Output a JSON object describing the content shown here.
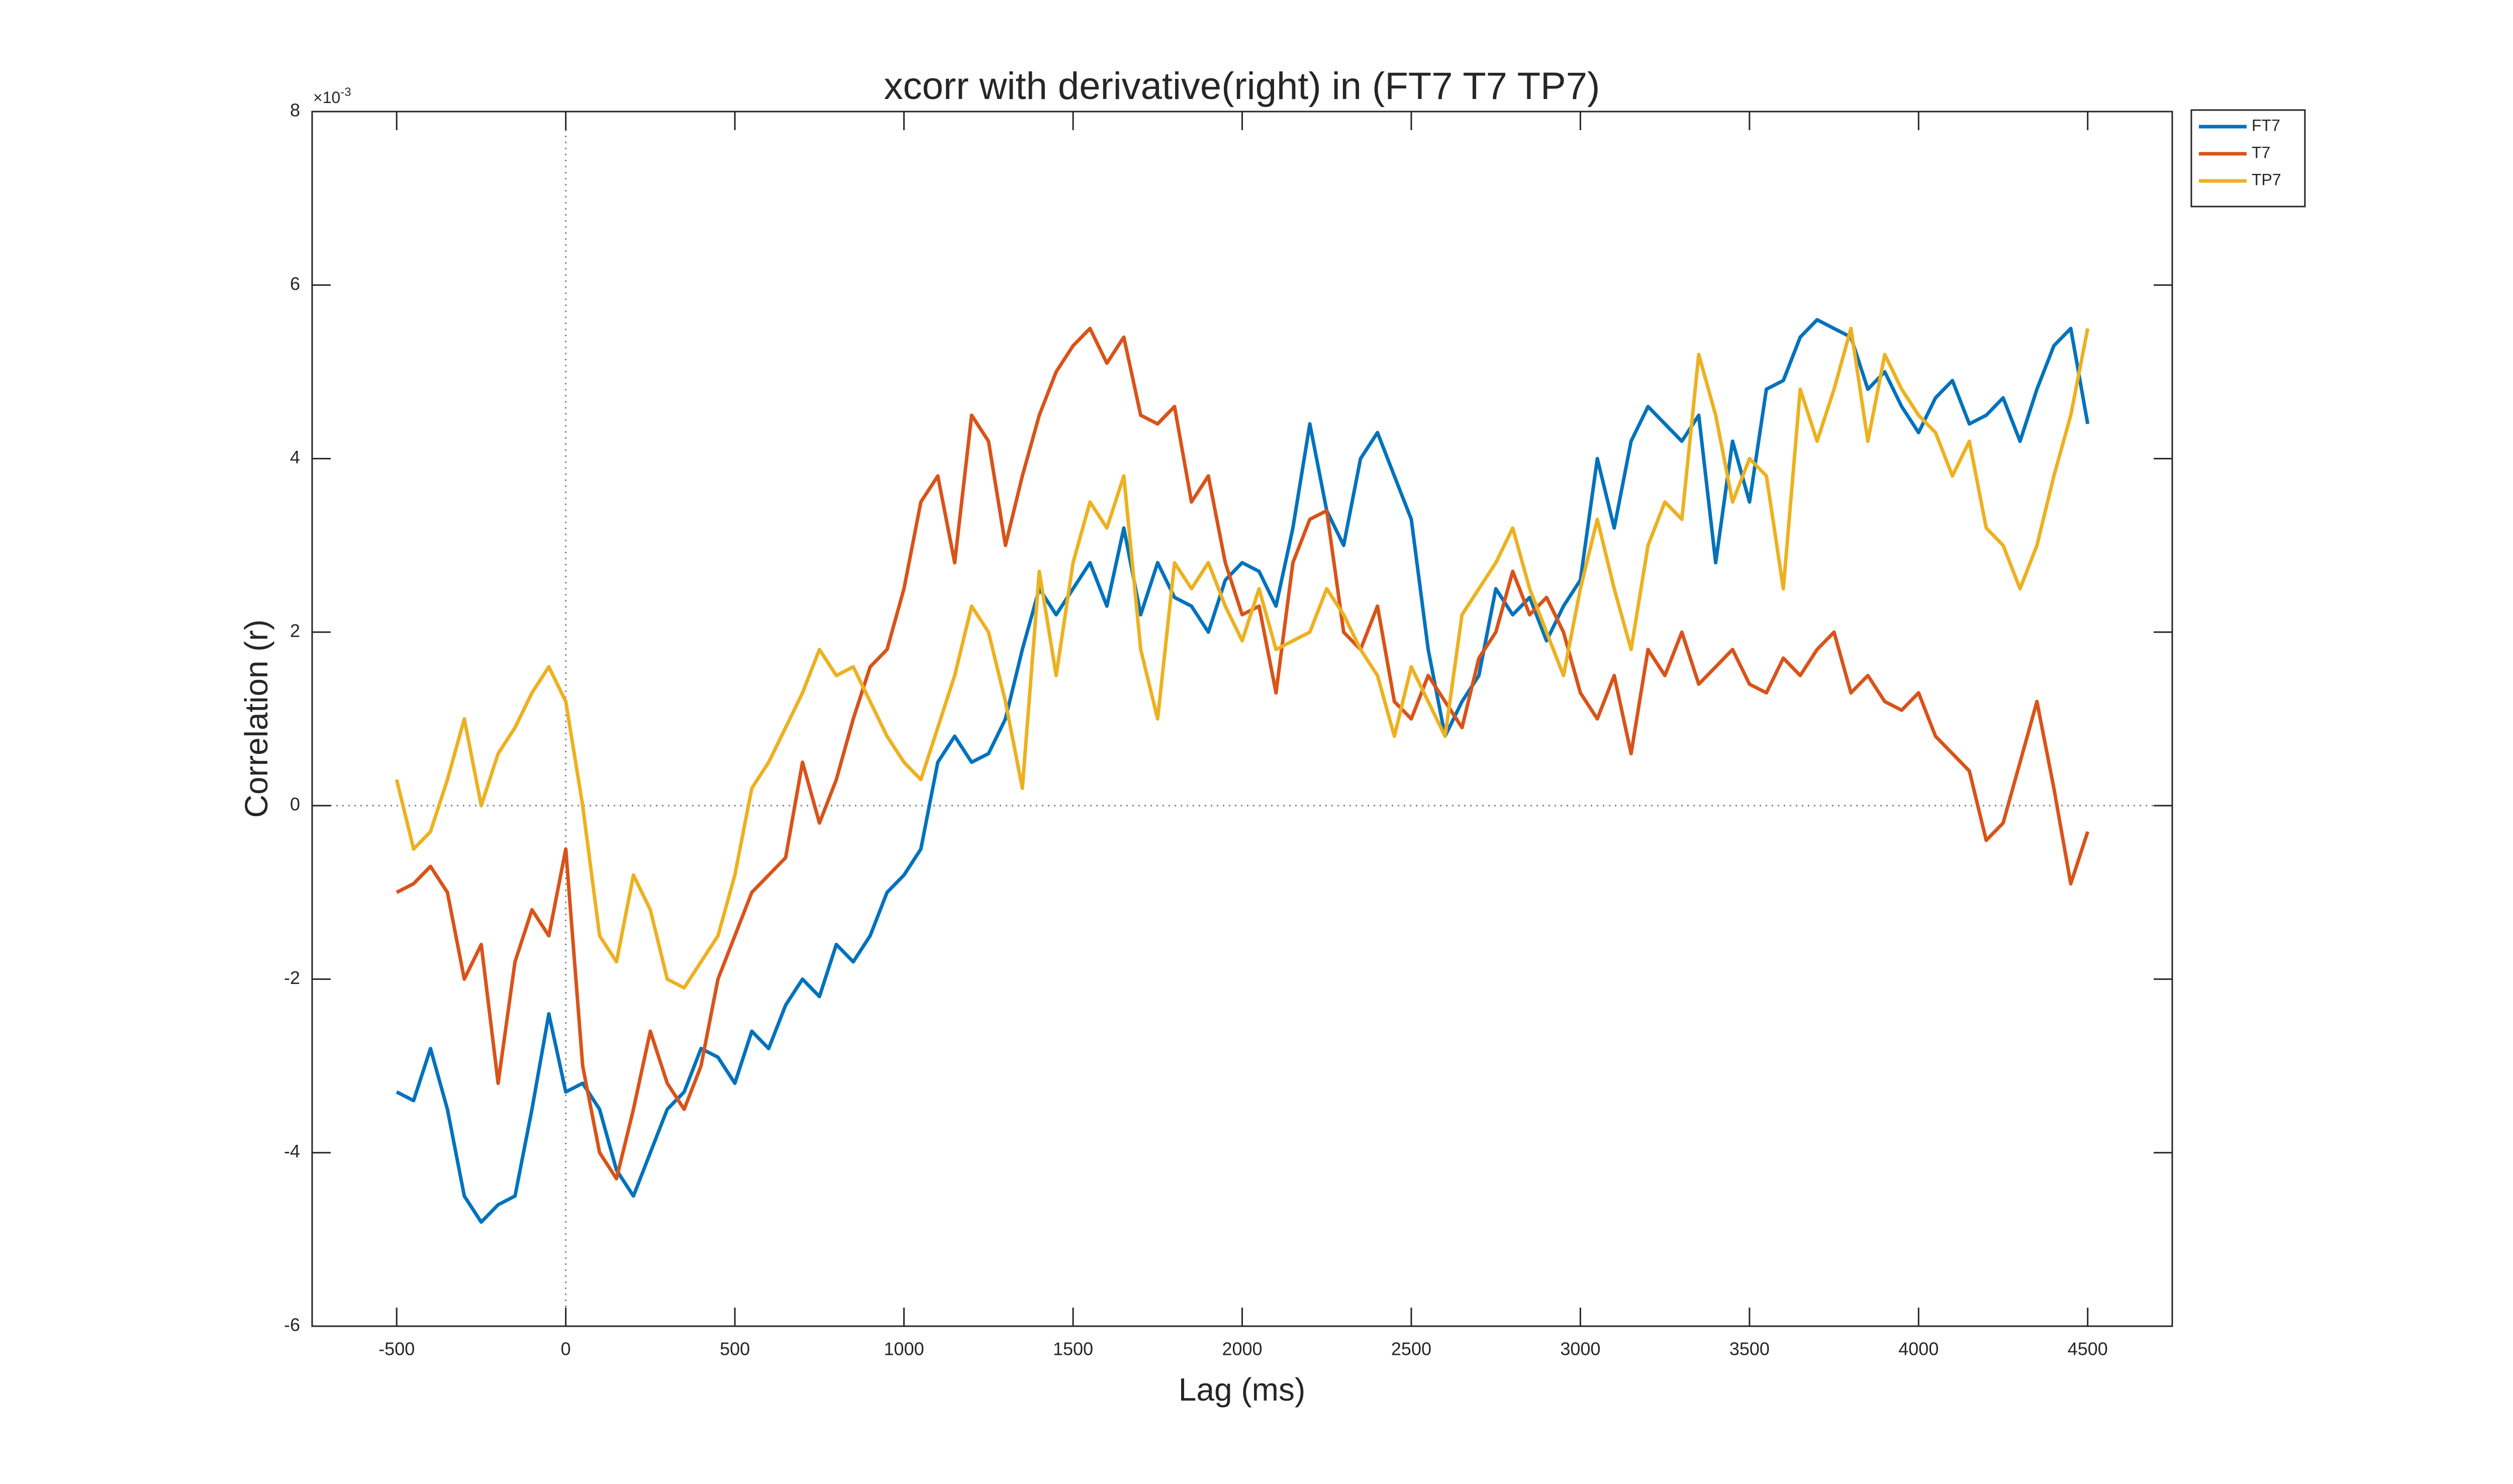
{
  "chart_data": {
    "type": "line",
    "title": "xcorr with derivative(right) in (FT7 T7 TP7)",
    "x_label": "Lag (ms)",
    "y_label": "Correlation (r)",
    "y_exponent_base": "×10",
    "y_exponent_power": "-3",
    "xlim": [
      -750,
      4750
    ],
    "ylim": [
      -6,
      8
    ],
    "xticks": [
      -500,
      0,
      500,
      1000,
      1500,
      2000,
      2500,
      3000,
      3500,
      4000,
      4500
    ],
    "yticks": [
      -6,
      -4,
      -2,
      0,
      2,
      4,
      6,
      8
    ],
    "grid": false,
    "xline": 0,
    "yline": 0,
    "legend": "northeastoutside",
    "x": [
      -500,
      -450,
      -400,
      -350,
      -300,
      -250,
      -200,
      -150,
      -100,
      -50,
      0,
      50,
      100,
      150,
      200,
      250,
      300,
      350,
      400,
      450,
      500,
      550,
      600,
      650,
      700,
      750,
      800,
      850,
      900,
      950,
      1000,
      1050,
      1100,
      1150,
      1200,
      1250,
      1300,
      1350,
      1400,
      1450,
      1500,
      1550,
      1600,
      1650,
      1700,
      1750,
      1800,
      1850,
      1900,
      1950,
      2000,
      2050,
      2100,
      2150,
      2200,
      2250,
      2300,
      2350,
      2400,
      2450,
      2500,
      2550,
      2600,
      2650,
      2700,
      2750,
      2800,
      2850,
      2900,
      2950,
      3000,
      3050,
      3100,
      3150,
      3200,
      3250,
      3300,
      3350,
      3400,
      3450,
      3500,
      3550,
      3600,
      3650,
      3700,
      3750,
      3800,
      3850,
      3900,
      3950,
      4000,
      4050,
      4100,
      4150,
      4200,
      4250,
      4300,
      4350,
      4400,
      4450,
      4500
    ],
    "series": [
      {
        "name": "FT7",
        "color": "#0072bd",
        "values": [
          -3.3,
          -3.4,
          -2.8,
          -3.5,
          -4.5,
          -4.8,
          -4.6,
          -4.5,
          -3.5,
          -2.4,
          -3.3,
          -3.2,
          -3.5,
          -4.2,
          -4.5,
          -4.0,
          -3.5,
          -3.3,
          -2.8,
          -2.9,
          -3.2,
          -2.6,
          -2.8,
          -2.3,
          -2.0,
          -2.2,
          -1.6,
          -1.8,
          -1.5,
          -1.0,
          -0.8,
          -0.5,
          0.5,
          0.8,
          0.5,
          0.6,
          1.0,
          1.8,
          2.5,
          2.2,
          2.5,
          2.8,
          2.3,
          3.2,
          2.2,
          2.8,
          2.4,
          2.3,
          2.0,
          2.6,
          2.8,
          2.7,
          2.3,
          3.2,
          4.4,
          3.4,
          3.0,
          4.0,
          4.3,
          3.8,
          3.3,
          1.8,
          0.8,
          1.2,
          1.5,
          2.5,
          2.2,
          2.4,
          1.9,
          2.3,
          2.6,
          4.0,
          3.2,
          4.2,
          4.6,
          4.4,
          4.2,
          4.5,
          2.8,
          4.2,
          3.5,
          4.8,
          4.9,
          5.4,
          5.6,
          5.5,
          5.4,
          4.8,
          5.0,
          4.6,
          4.3,
          4.7,
          4.9,
          4.4,
          4.5,
          4.7,
          4.2,
          4.8,
          5.3,
          5.5,
          4.4
        ]
      },
      {
        "name": "T7",
        "color": "#d95319",
        "values": [
          -1.0,
          -0.9,
          -0.7,
          -1.0,
          -2.0,
          -1.6,
          -3.2,
          -1.8,
          -1.2,
          -1.5,
          -0.5,
          -3.0,
          -4.0,
          -4.3,
          -3.5,
          -2.6,
          -3.2,
          -3.5,
          -3.0,
          -2.0,
          -1.5,
          -1.0,
          -0.8,
          -0.6,
          0.5,
          -0.2,
          0.3,
          1.0,
          1.6,
          1.8,
          2.5,
          3.5,
          3.8,
          2.8,
          4.5,
          4.2,
          3.0,
          3.8,
          4.5,
          5.0,
          5.3,
          5.5,
          5.1,
          5.4,
          4.5,
          4.4,
          4.6,
          3.5,
          3.8,
          2.8,
          2.2,
          2.3,
          1.3,
          2.8,
          3.3,
          3.4,
          2.0,
          1.8,
          2.3,
          1.2,
          1.0,
          1.5,
          1.2,
          0.9,
          1.7,
          2.0,
          2.7,
          2.2,
          2.4,
          2.0,
          1.3,
          1.0,
          1.5,
          0.6,
          1.8,
          1.5,
          2.0,
          1.4,
          1.6,
          1.8,
          1.4,
          1.3,
          1.7,
          1.5,
          1.8,
          2.0,
          1.3,
          1.5,
          1.2,
          1.1,
          1.3,
          0.8,
          0.6,
          0.4,
          -0.4,
          -0.2,
          0.5,
          1.2,
          0.2,
          -0.9,
          -0.3
        ]
      },
      {
        "name": "TP7",
        "color": "#edb120",
        "values": [
          0.3,
          -0.5,
          -0.3,
          0.3,
          1.0,
          0.0,
          0.6,
          0.9,
          1.3,
          1.6,
          1.2,
          0.0,
          -1.5,
          -1.8,
          -0.8,
          -1.2,
          -2.0,
          -2.1,
          -1.8,
          -1.5,
          -0.8,
          0.2,
          0.5,
          0.9,
          1.3,
          1.8,
          1.5,
          1.6,
          1.2,
          0.8,
          0.5,
          0.3,
          0.9,
          1.5,
          2.3,
          2.0,
          1.2,
          0.2,
          2.7,
          1.5,
          2.8,
          3.5,
          3.2,
          3.8,
          1.8,
          1.0,
          2.8,
          2.5,
          2.8,
          2.3,
          1.9,
          2.5,
          1.8,
          1.9,
          2.0,
          2.5,
          2.2,
          1.8,
          1.5,
          0.8,
          1.6,
          1.2,
          0.8,
          2.2,
          2.5,
          2.8,
          3.2,
          2.5,
          2.0,
          1.5,
          2.5,
          3.3,
          2.5,
          1.8,
          3.0,
          3.5,
          3.3,
          5.2,
          4.5,
          3.5,
          4.0,
          3.8,
          2.5,
          4.8,
          4.2,
          4.8,
          5.5,
          4.2,
          5.2,
          4.8,
          4.5,
          4.3,
          3.8,
          4.2,
          3.2,
          3.0,
          2.5,
          3.0,
          3.8,
          4.5,
          5.5
        ]
      }
    ]
  }
}
